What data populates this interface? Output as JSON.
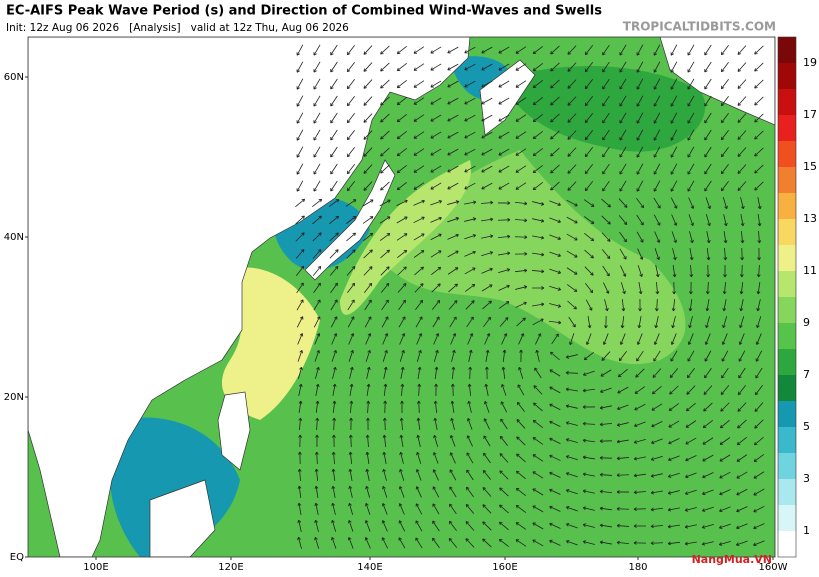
{
  "header": {
    "title": "EC-AIFS Peak Wave Period (s) and Direction of Combined Wind-Waves and Swells",
    "subtitle": "Init: 12z Aug 06 2026   [Analysis]   valid at 12z Thu, Aug 06 2026",
    "site": "TROPICALTIDBITS.COM"
  },
  "map": {
    "lat_labels": [
      "60N",
      "40N",
      "20N",
      "EQ"
    ],
    "lon_labels": [
      "100E",
      "120E",
      "140E",
      "160E",
      "180",
      "160W"
    ]
  },
  "colorbar": {
    "labels": [
      "1",
      "3",
      "5",
      "7",
      "9",
      "11",
      "13",
      "15",
      "17",
      "19"
    ],
    "colors": [
      "#ffffff",
      "#d8f6f8",
      "#a8e8ee",
      "#70d4e0",
      "#3ab8cc",
      "#1698b0",
      "#13883a",
      "#2ea83e",
      "#56c44a",
      "#86d65e",
      "#b6e66e",
      "#eef08a",
      "#f8d860",
      "#f8b040",
      "#f08030",
      "#f05020",
      "#e82020",
      "#c81010",
      "#a00808",
      "#7a0808"
    ]
  },
  "watermark": "NangMua.VN"
}
